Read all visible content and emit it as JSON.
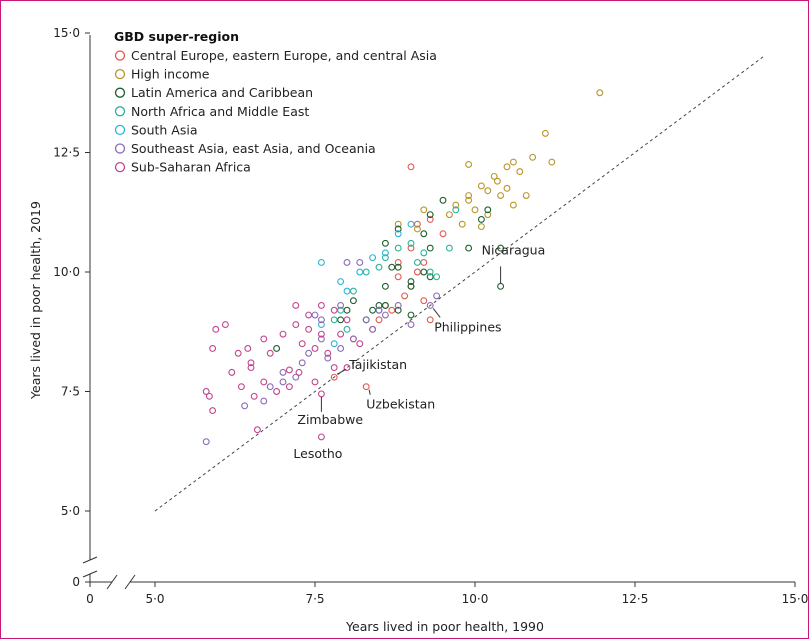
{
  "chart_data": {
    "type": "scatter",
    "xlabel": "Years lived in poor health, 1990",
    "ylabel": "Years lived in poor health, 2019",
    "xlim": [
      0,
      15
    ],
    "ylim": [
      0,
      15
    ],
    "x_ticks": [
      "0",
      "5·0",
      "7·5",
      "10·0",
      "12·5",
      "15·0"
    ],
    "y_ticks": [
      "0",
      "5·0",
      "7·5",
      "10·0",
      "12·5",
      "15·0"
    ],
    "axis_break": true,
    "reference_line": "y = x (dashed)",
    "legend": {
      "title": "GBD super-region",
      "placement": "top-left"
    },
    "series": [
      {
        "name": "Central Europe, eastern Europe, and central Asia",
        "color": "#e05a4f",
        "points": [
          [
            7.8,
            7.8
          ],
          [
            8.3,
            7.6
          ],
          [
            8.1,
            8.6
          ],
          [
            8.4,
            8.8
          ],
          [
            8.5,
            9.0
          ],
          [
            8.7,
            9.2
          ],
          [
            8.9,
            9.5
          ],
          [
            9.0,
            9.7
          ],
          [
            9.1,
            10.0
          ],
          [
            9.2,
            10.2
          ],
          [
            9.0,
            10.5
          ],
          [
            9.3,
            9.0
          ],
          [
            8.8,
            9.9
          ],
          [
            9.5,
            10.8
          ],
          [
            9.1,
            11.0
          ],
          [
            9.3,
            11.1
          ],
          [
            8.6,
            9.3
          ],
          [
            9.2,
            9.4
          ],
          [
            8.8,
            10.2
          ],
          [
            9.0,
            12.2
          ]
        ]
      },
      {
        "name": "High income",
        "color": "#b8952a",
        "points": [
          [
            11.95,
            13.75
          ],
          [
            11.1,
            12.9
          ],
          [
            10.6,
            12.3
          ],
          [
            10.9,
            12.4
          ],
          [
            11.2,
            12.3
          ],
          [
            10.3,
            12.0
          ],
          [
            10.5,
            12.2
          ],
          [
            10.7,
            12.1
          ],
          [
            10.1,
            11.8
          ],
          [
            10.2,
            11.7
          ],
          [
            10.35,
            11.9
          ],
          [
            10.5,
            11.75
          ],
          [
            10.4,
            11.6
          ],
          [
            9.9,
            11.5
          ],
          [
            10.0,
            11.3
          ],
          [
            10.2,
            11.2
          ],
          [
            10.8,
            11.6
          ],
          [
            10.6,
            11.4
          ],
          [
            9.9,
            12.25
          ],
          [
            9.7,
            11.4
          ],
          [
            9.6,
            11.2
          ],
          [
            9.8,
            11.0
          ],
          [
            10.1,
            10.95
          ],
          [
            9.2,
            11.3
          ],
          [
            8.8,
            11.0
          ],
          [
            9.1,
            10.9
          ],
          [
            9.9,
            11.6
          ]
        ]
      },
      {
        "name": "Latin America and Caribbean",
        "color": "#1c5e2a",
        "points": [
          [
            10.4,
            9.7
          ],
          [
            10.4,
            10.5
          ],
          [
            9.9,
            10.5
          ],
          [
            10.2,
            11.3
          ],
          [
            10.1,
            11.1
          ],
          [
            9.5,
            11.5
          ],
          [
            9.3,
            11.2
          ],
          [
            9.2,
            10.8
          ],
          [
            8.8,
            10.9
          ],
          [
            8.6,
            10.6
          ],
          [
            8.7,
            10.1
          ],
          [
            8.8,
            10.1
          ],
          [
            9.2,
            10.0
          ],
          [
            9.3,
            9.9
          ],
          [
            9.0,
            9.8
          ],
          [
            8.6,
            9.7
          ],
          [
            8.5,
            9.3
          ],
          [
            8.4,
            9.2
          ],
          [
            8.1,
            9.4
          ],
          [
            8.0,
            9.2
          ],
          [
            7.9,
            9.0
          ],
          [
            8.3,
            9.0
          ],
          [
            8.8,
            9.2
          ],
          [
            9.0,
            9.1
          ],
          [
            9.3,
            10.5
          ],
          [
            6.9,
            8.4
          ],
          [
            8.6,
            9.3
          ],
          [
            9.0,
            9.7
          ]
        ]
      },
      {
        "name": "North Africa and Middle East",
        "color": "#2bb39a",
        "points": [
          [
            9.4,
            9.9
          ],
          [
            9.6,
            10.5
          ],
          [
            9.7,
            11.3
          ],
          [
            9.2,
            10.4
          ],
          [
            9.0,
            10.6
          ],
          [
            8.8,
            10.5
          ],
          [
            8.5,
            10.1
          ],
          [
            8.6,
            10.3
          ],
          [
            8.3,
            10.0
          ],
          [
            8.1,
            9.6
          ],
          [
            7.9,
            9.2
          ],
          [
            7.8,
            9.0
          ],
          [
            8.0,
            8.8
          ],
          [
            8.5,
            9.2
          ],
          [
            9.3,
            10.0
          ],
          [
            9.1,
            10.2
          ]
        ]
      },
      {
        "name": "South Asia",
        "color": "#29b6d8",
        "points": [
          [
            7.6,
            10.2
          ],
          [
            7.9,
            9.8
          ],
          [
            8.0,
            9.6
          ],
          [
            8.2,
            10.0
          ],
          [
            8.4,
            10.3
          ],
          [
            8.6,
            10.4
          ],
          [
            8.8,
            10.8
          ],
          [
            9.0,
            11.0
          ],
          [
            7.6,
            8.9
          ],
          [
            7.8,
            8.5
          ]
        ]
      },
      {
        "name": "Southeast Asia, east Asia, and Oceania",
        "color": "#8a6ab8",
        "points": [
          [
            9.3,
            9.3
          ],
          [
            9.0,
            8.9
          ],
          [
            8.8,
            9.3
          ],
          [
            8.6,
            9.1
          ],
          [
            8.4,
            8.8
          ],
          [
            8.1,
            8.6
          ],
          [
            7.9,
            8.4
          ],
          [
            7.7,
            8.2
          ],
          [
            7.4,
            8.3
          ],
          [
            7.0,
            7.7
          ],
          [
            6.7,
            7.3
          ],
          [
            6.4,
            7.2
          ],
          [
            5.8,
            6.45
          ],
          [
            7.5,
            9.1
          ],
          [
            7.6,
            9.0
          ],
          [
            7.9,
            9.3
          ],
          [
            8.0,
            10.2
          ],
          [
            8.2,
            10.2
          ],
          [
            8.3,
            9.0
          ],
          [
            7.3,
            8.1
          ],
          [
            7.0,
            7.9
          ],
          [
            8.5,
            9.2
          ],
          [
            9.4,
            9.5
          ],
          [
            7.2,
            7.8
          ],
          [
            6.8,
            7.6
          ],
          [
            7.6,
            8.6
          ]
        ]
      },
      {
        "name": "Sub-Saharan Africa",
        "color": "#c2458f",
        "points": [
          [
            7.6,
            6.55
          ],
          [
            7.6,
            7.45
          ],
          [
            6.6,
            6.7
          ],
          [
            5.85,
            7.4
          ],
          [
            5.8,
            7.5
          ],
          [
            5.9,
            7.1
          ],
          [
            5.95,
            8.8
          ],
          [
            5.9,
            8.4
          ],
          [
            6.1,
            8.9
          ],
          [
            6.3,
            8.3
          ],
          [
            6.45,
            8.4
          ],
          [
            6.5,
            8.0
          ],
          [
            6.7,
            8.6
          ],
          [
            6.8,
            8.3
          ],
          [
            7.0,
            8.7
          ],
          [
            7.2,
            8.9
          ],
          [
            7.3,
            8.5
          ],
          [
            7.4,
            8.8
          ],
          [
            7.5,
            8.4
          ],
          [
            7.6,
            8.7
          ],
          [
            7.7,
            8.3
          ],
          [
            7.8,
            8.0
          ],
          [
            7.2,
            9.3
          ],
          [
            7.4,
            9.1
          ],
          [
            7.6,
            9.3
          ],
          [
            7.8,
            9.2
          ],
          [
            7.9,
            8.7
          ],
          [
            8.0,
            9.0
          ],
          [
            8.2,
            8.5
          ],
          [
            6.35,
            7.6
          ],
          [
            6.55,
            7.4
          ],
          [
            6.7,
            7.7
          ],
          [
            6.9,
            7.5
          ],
          [
            7.1,
            7.95
          ],
          [
            7.25,
            7.9
          ],
          [
            7.5,
            7.7
          ],
          [
            7.1,
            7.6
          ],
          [
            8.0,
            8.0
          ],
          [
            6.5,
            8.1
          ],
          [
            6.2,
            7.9
          ]
        ]
      }
    ],
    "annotations": [
      {
        "text": "Nicaragua",
        "x": 10.4,
        "y": 9.7
      },
      {
        "text": "Philippines",
        "x": 9.3,
        "y": 9.3
      },
      {
        "text": "Tajikistan",
        "x": 7.8,
        "y": 7.8
      },
      {
        "text": "Uzbekistan",
        "x": 8.3,
        "y": 7.6
      },
      {
        "text": "Zimbabwe",
        "x": 7.6,
        "y": 7.45
      },
      {
        "text": "Lesotho",
        "x": 7.6,
        "y": 6.55
      }
    ]
  }
}
